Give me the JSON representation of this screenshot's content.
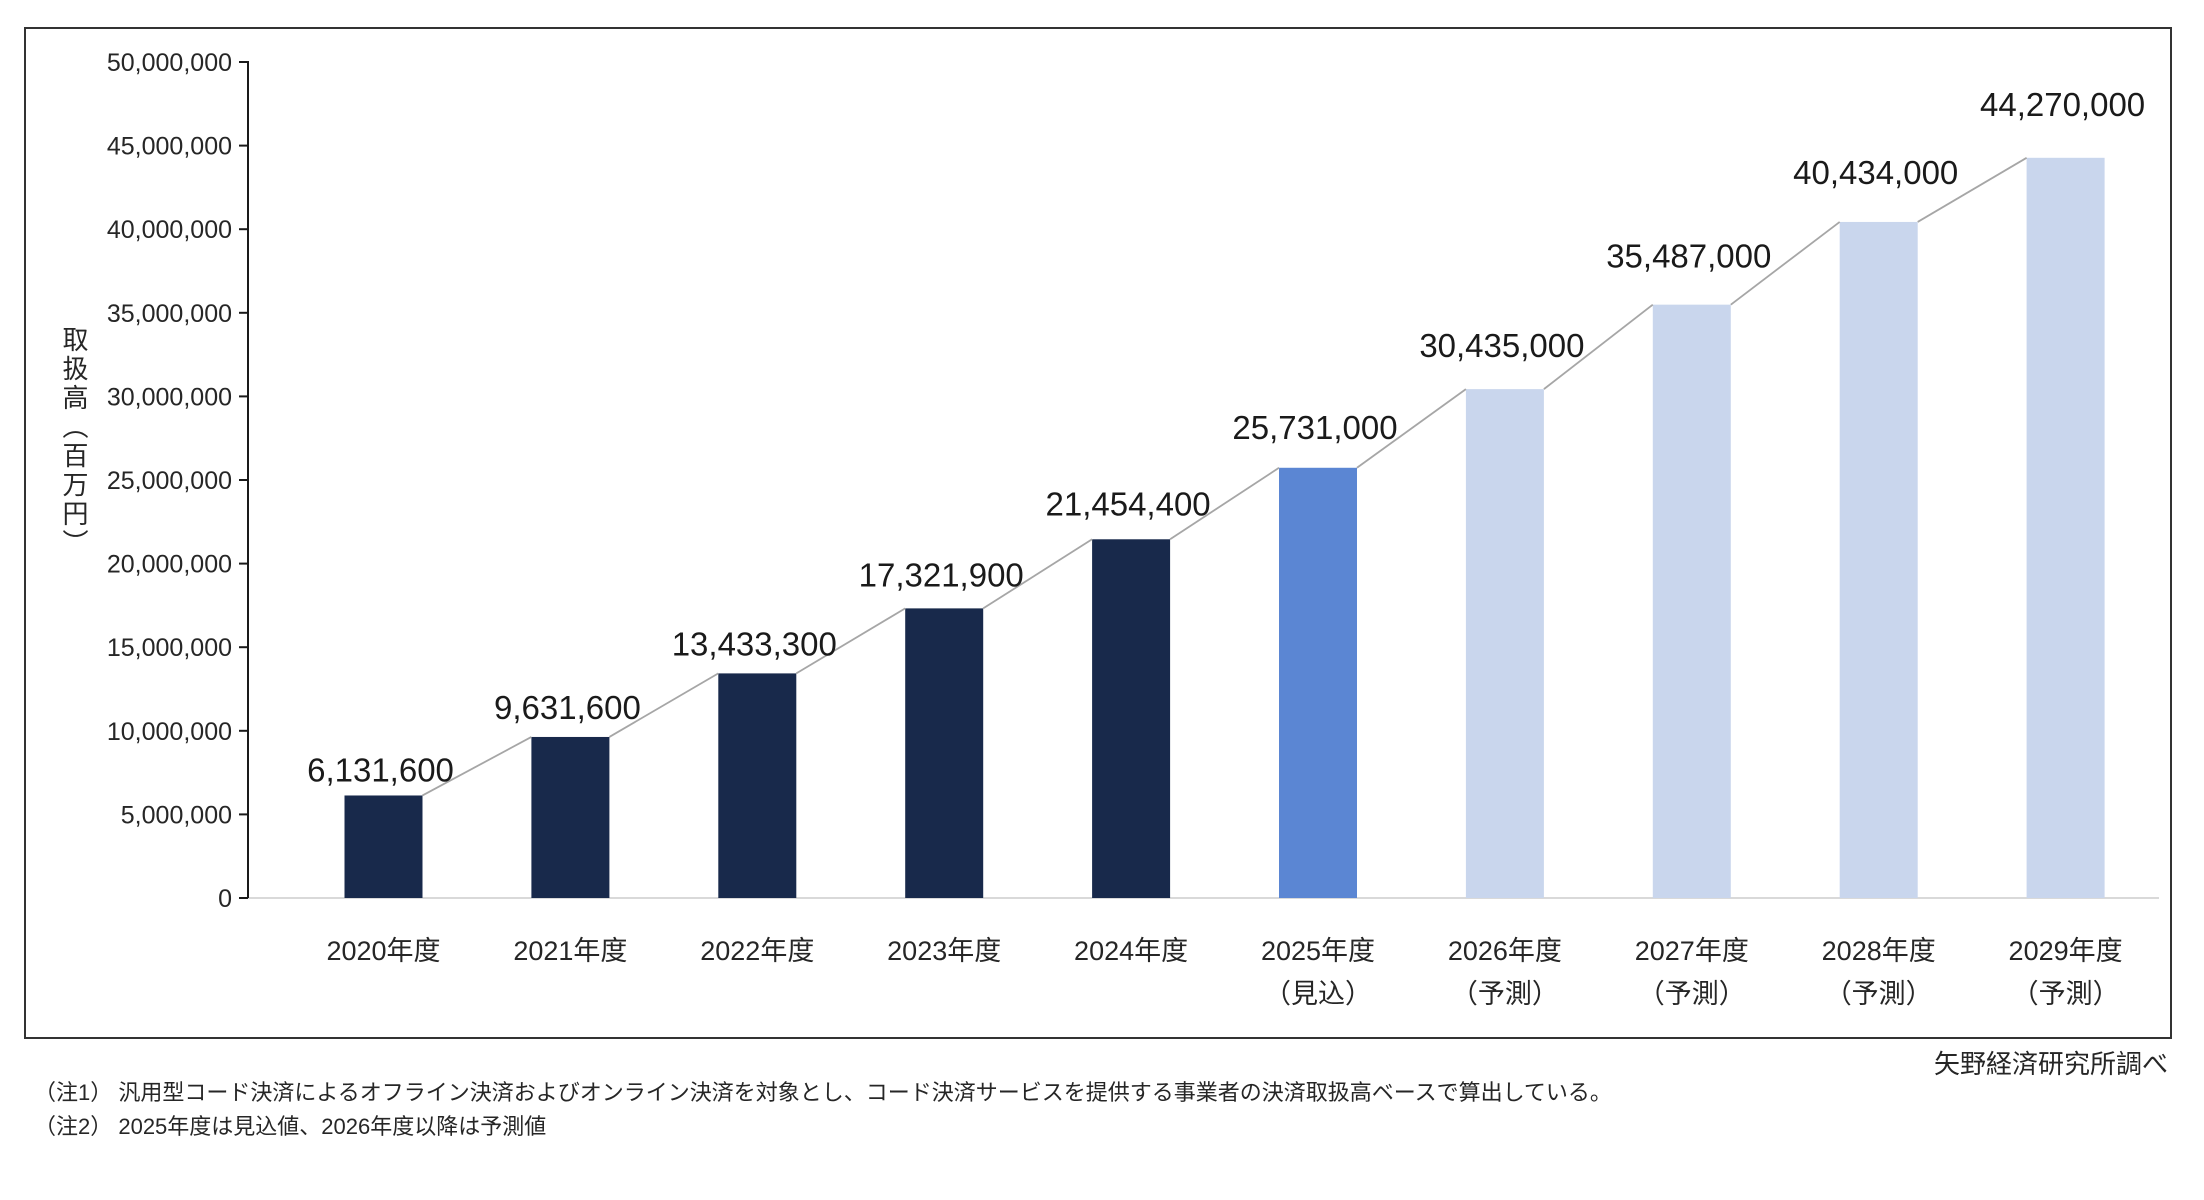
{
  "chart_data": {
    "type": "bar",
    "title": "",
    "ylabel": "取扱高（百万円）",
    "xlabel": "",
    "categories": [
      "2020年度",
      "2021年度",
      "2022年度",
      "2023年度",
      "2024年度",
      "2025年度",
      "2026年度",
      "2027年度",
      "2028年度",
      "2029年度"
    ],
    "category_sublabels": [
      "",
      "",
      "",
      "",
      "",
      "（見込）",
      "（予測）",
      "（予測）",
      "（予測）",
      "（予測）"
    ],
    "values": [
      6131600,
      9631600,
      13433300,
      17321900,
      21454400,
      25731000,
      30435000,
      35487000,
      40434000,
      44270000
    ],
    "data_labels": [
      "6,131,600",
      "9,631,600",
      "13,433,300",
      "17,321,900",
      "21,454,400",
      "25,731,000",
      "30,435,000",
      "35,487,000",
      "40,434,000",
      "44,270,000"
    ],
    "bar_status": [
      "actual",
      "actual",
      "actual",
      "actual",
      "actual",
      "estimate",
      "forecast",
      "forecast",
      "forecast",
      "forecast"
    ],
    "bar_colors": [
      "#18294B",
      "#18294B",
      "#18294B",
      "#18294B",
      "#18294B",
      "#5B86D3",
      "#C9D6ED",
      "#C9D6ED",
      "#C9D6ED",
      "#C9D6ED"
    ],
    "ylim": [
      0,
      50000000
    ],
    "ytick_interval": 5000000,
    "ytick_labels": [
      "0",
      "5,000,000",
      "10,000,000",
      "15,000,000",
      "20,000,000",
      "25,000,000",
      "30,000,000",
      "35,000,000",
      "40,000,000",
      "45,000,000",
      "50,000,000"
    ],
    "grid": false,
    "legend": "none",
    "leader_line_color": "#A6A6A6",
    "axis_color": "#1a1a1a",
    "baseline_color": "#D9D9D9",
    "frame_color": "#333333",
    "text_color": "#262626"
  },
  "footer": {
    "source": "矢野経済研究所調べ",
    "notes": [
      "（注1） 汎用型コード決済によるオフライン決済およびオンライン決済を対象とし、コード決済サービスを提供する事業者の決済取扱高ベースで算出している。",
      "（注2） 2025年度は見込値、2026年度以降は予測値"
    ]
  }
}
